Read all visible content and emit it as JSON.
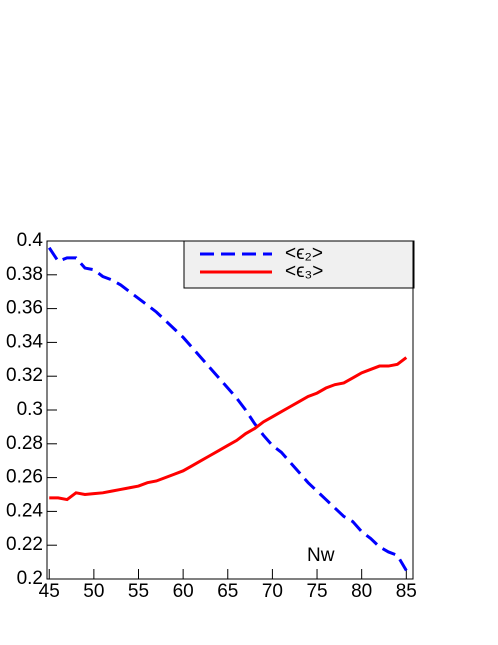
{
  "chart_data": {
    "type": "line",
    "x_label": "Nw",
    "x": [
      45,
      46,
      47,
      48,
      49,
      50,
      51,
      52,
      53,
      54,
      55,
      56,
      57,
      58,
      59,
      60,
      61,
      62,
      63,
      64,
      65,
      66,
      67,
      68,
      69,
      70,
      71,
      72,
      73,
      74,
      75,
      76,
      77,
      78,
      79,
      80,
      81,
      82,
      83,
      84,
      85
    ],
    "series": [
      {
        "name": "<ϵ₂>",
        "color": "#0000ff",
        "dash": true,
        "values": [
          0.396,
          0.388,
          0.39,
          0.39,
          0.384,
          0.383,
          0.379,
          0.377,
          0.374,
          0.37,
          0.366,
          0.362,
          0.358,
          0.353,
          0.348,
          0.343,
          0.337,
          0.331,
          0.325,
          0.319,
          0.313,
          0.307,
          0.3,
          0.292,
          0.285,
          0.279,
          0.275,
          0.269,
          0.263,
          0.257,
          0.252,
          0.247,
          0.242,
          0.237,
          0.234,
          0.228,
          0.224,
          0.219,
          0.216,
          0.214,
          0.205
        ]
      },
      {
        "name": "<ϵ₃>",
        "color": "#ff0000",
        "dash": false,
        "values": [
          0.248,
          0.248,
          0.247,
          0.251,
          0.25,
          0.2505,
          0.251,
          0.252,
          0.253,
          0.254,
          0.255,
          0.257,
          0.258,
          0.26,
          0.262,
          0.264,
          0.267,
          0.27,
          0.273,
          0.276,
          0.279,
          0.282,
          0.286,
          0.289,
          0.293,
          0.296,
          0.299,
          0.302,
          0.305,
          0.308,
          0.31,
          0.313,
          0.315,
          0.316,
          0.319,
          0.322,
          0.324,
          0.326,
          0.326,
          0.327,
          0.331
        ]
      }
    ],
    "xlim": [
      44.75,
      85.75
    ],
    "xticks": [
      45,
      50,
      55,
      60,
      65,
      70,
      75,
      80,
      85
    ],
    "ylim": [
      0.2,
      0.4
    ],
    "yticks": [
      0.2,
      0.22,
      0.24,
      0.26,
      0.28,
      0.3,
      0.32,
      0.34,
      0.36,
      0.38,
      0.4
    ],
    "grid": false
  }
}
